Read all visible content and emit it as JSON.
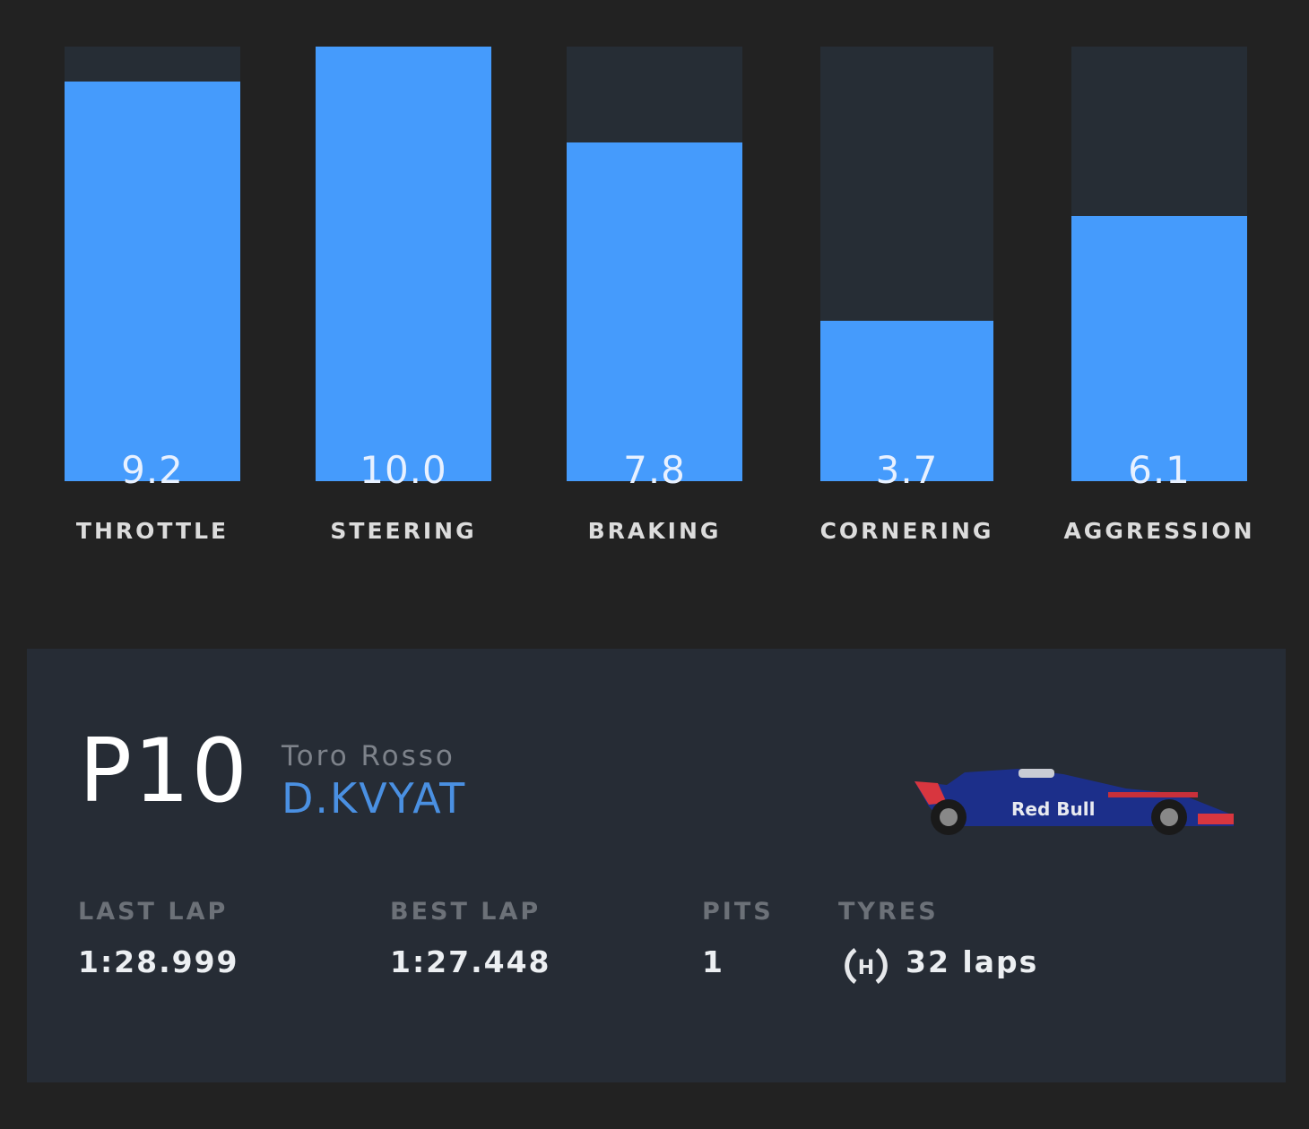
{
  "chart_data": {
    "type": "bar",
    "categories": [
      "THROTTLE",
      "STEERING",
      "BRAKING",
      "CORNERING",
      "AGGRESSION"
    ],
    "values": [
      9.2,
      10.0,
      7.8,
      3.7,
      6.1
    ],
    "value_labels": [
      "9.2",
      "10.0",
      "7.8",
      "3.7",
      "6.1"
    ],
    "ylim": [
      0,
      10
    ],
    "grid": false,
    "colors": {
      "fill": "#459bfc",
      "track": "#262d35"
    }
  },
  "driver_card": {
    "position": "P10",
    "team": "Toro Rosso",
    "driver": "D.KVYAT",
    "car_image_text": "Red Bull",
    "stats": {
      "last_lap_label": "LAST LAP",
      "last_lap": "1:28.999",
      "best_lap_label": "BEST LAP",
      "best_lap": "1:27.448",
      "pits_label": "PITS",
      "pits": "1",
      "tyres_label": "TYRES",
      "tyre_compound": "H",
      "tyres": "32 laps"
    },
    "colors": {
      "accent": "#4a90e2",
      "panel": "#262c35"
    }
  }
}
